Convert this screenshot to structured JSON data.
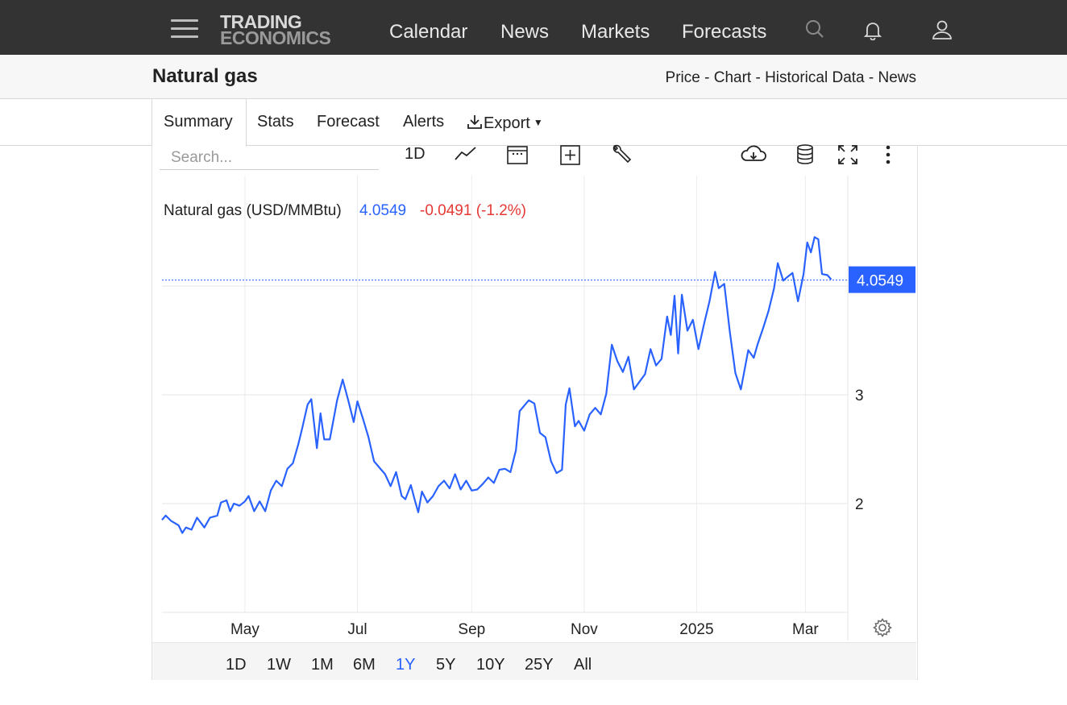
{
  "header": {
    "logo_line1": "TRADING",
    "logo_line2": "ECONOMICS",
    "nav": [
      "Calendar",
      "News",
      "Markets",
      "Forecasts"
    ],
    "icons": [
      "menu-icon",
      "search-icon",
      "bell-icon",
      "user-icon"
    ]
  },
  "subheader": {
    "title": "Natural gas",
    "links": "Price - Chart - Historical Data - News"
  },
  "tabs": [
    "Summary",
    "Stats",
    "Forecast",
    "Alerts",
    "Export"
  ],
  "toolbar": {
    "search_placeholder": "Search...",
    "interval": "1D",
    "icons": [
      "line-chart-icon",
      "calendar-icon",
      "add-compare-icon",
      "wrench-icon",
      "download-cloud-icon",
      "database-icon",
      "fullscreen-icon",
      "more-icon"
    ]
  },
  "legend": {
    "name": "Natural gas (USD/MMBtu)",
    "value": "4.0549",
    "change": "-0.0491 (-1.2%)"
  },
  "ranges": [
    "1D",
    "1W",
    "1M",
    "6M",
    "1Y",
    "5Y",
    "10Y",
    "25Y",
    "All"
  ],
  "active_range": "1Y",
  "colors": {
    "line": "#2962ff",
    "negative": "#e53935",
    "accent": "#2962ff"
  },
  "chart_data": {
    "type": "line",
    "title": "Natural gas (USD/MMBtu)",
    "xlabel": "",
    "ylabel": "",
    "last_value": 4.0549,
    "ylim": [
      1,
      4.8
    ],
    "yticks": [
      2,
      3
    ],
    "xtick_labels": [
      {
        "label": "May",
        "date": "2024-05-01"
      },
      {
        "label": "Jul",
        "date": "2024-07-01"
      },
      {
        "label": "Sep",
        "date": "2024-09-01"
      },
      {
        "label": "Nov",
        "date": "2024-11-01"
      },
      {
        "label": "2025",
        "date": "2025-01-01"
      },
      {
        "label": "Mar",
        "date": "2025-03-01"
      }
    ],
    "x_range": [
      "2024-03-17",
      "2025-03-24"
    ],
    "grid": true,
    "series": [
      {
        "name": "Natural gas",
        "points": [
          [
            "2024-03-17",
            1.85
          ],
          [
            "2024-03-19",
            1.89
          ],
          [
            "2024-03-22",
            1.84
          ],
          [
            "2024-03-26",
            1.8
          ],
          [
            "2024-03-28",
            1.73
          ],
          [
            "2024-03-30",
            1.78
          ],
          [
            "2024-04-02",
            1.76
          ],
          [
            "2024-04-05",
            1.87
          ],
          [
            "2024-04-09",
            1.78
          ],
          [
            "2024-04-12",
            1.87
          ],
          [
            "2024-04-16",
            1.89
          ],
          [
            "2024-04-18",
            2.01
          ],
          [
            "2024-04-21",
            2.03
          ],
          [
            "2024-04-23",
            1.93
          ],
          [
            "2024-04-25",
            2.0
          ],
          [
            "2024-04-28",
            1.98
          ],
          [
            "2024-05-01",
            2.02
          ],
          [
            "2024-05-03",
            2.07
          ],
          [
            "2024-05-06",
            1.93
          ],
          [
            "2024-05-09",
            2.02
          ],
          [
            "2024-05-12",
            1.93
          ],
          [
            "2024-05-15",
            2.12
          ],
          [
            "2024-05-18",
            2.21
          ],
          [
            "2024-05-21",
            2.16
          ],
          [
            "2024-05-24",
            2.32
          ],
          [
            "2024-05-27",
            2.37
          ],
          [
            "2024-05-30",
            2.55
          ],
          [
            "2024-06-01",
            2.69
          ],
          [
            "2024-06-04",
            2.91
          ],
          [
            "2024-06-06",
            2.96
          ],
          [
            "2024-06-09",
            2.51
          ],
          [
            "2024-06-11",
            2.83
          ],
          [
            "2024-06-13",
            2.59
          ],
          [
            "2024-06-16",
            2.59
          ],
          [
            "2024-06-18",
            2.77
          ],
          [
            "2024-06-20",
            2.95
          ],
          [
            "2024-06-23",
            3.14
          ],
          [
            "2024-06-26",
            2.95
          ],
          [
            "2024-06-29",
            2.75
          ],
          [
            "2024-07-01",
            2.94
          ],
          [
            "2024-07-04",
            2.78
          ],
          [
            "2024-07-07",
            2.61
          ],
          [
            "2024-07-10",
            2.39
          ],
          [
            "2024-07-13",
            2.33
          ],
          [
            "2024-07-16",
            2.27
          ],
          [
            "2024-07-19",
            2.16
          ],
          [
            "2024-07-22",
            2.29
          ],
          [
            "2024-07-25",
            2.07
          ],
          [
            "2024-07-27",
            2.04
          ],
          [
            "2024-07-30",
            2.17
          ],
          [
            "2024-08-01",
            2.04
          ],
          [
            "2024-08-03",
            1.92
          ],
          [
            "2024-08-05",
            2.11
          ],
          [
            "2024-08-08",
            2.01
          ],
          [
            "2024-08-11",
            2.07
          ],
          [
            "2024-08-14",
            2.16
          ],
          [
            "2024-08-17",
            2.21
          ],
          [
            "2024-08-20",
            2.14
          ],
          [
            "2024-08-23",
            2.27
          ],
          [
            "2024-08-26",
            2.13
          ],
          [
            "2024-08-29",
            2.21
          ],
          [
            "2024-09-01",
            2.12
          ],
          [
            "2024-09-04",
            2.13
          ],
          [
            "2024-09-07",
            2.18
          ],
          [
            "2024-09-10",
            2.24
          ],
          [
            "2024-09-13",
            2.19
          ],
          [
            "2024-09-16",
            2.31
          ],
          [
            "2024-09-19",
            2.32
          ],
          [
            "2024-09-22",
            2.29
          ],
          [
            "2024-09-25",
            2.49
          ],
          [
            "2024-09-27",
            2.85
          ],
          [
            "2024-09-30",
            2.91
          ],
          [
            "2024-10-02",
            2.95
          ],
          [
            "2024-10-05",
            2.92
          ],
          [
            "2024-10-08",
            2.65
          ],
          [
            "2024-10-11",
            2.61
          ],
          [
            "2024-10-14",
            2.39
          ],
          [
            "2024-10-17",
            2.28
          ],
          [
            "2024-10-20",
            2.31
          ],
          [
            "2024-10-22",
            2.91
          ],
          [
            "2024-10-24",
            3.06
          ],
          [
            "2024-10-27",
            2.71
          ],
          [
            "2024-10-29",
            2.76
          ],
          [
            "2024-11-01",
            2.67
          ],
          [
            "2024-11-04",
            2.82
          ],
          [
            "2024-11-07",
            2.88
          ],
          [
            "2024-11-10",
            2.82
          ],
          [
            "2024-11-13",
            3.01
          ],
          [
            "2024-11-16",
            3.46
          ],
          [
            "2024-11-19",
            3.31
          ],
          [
            "2024-11-22",
            3.21
          ],
          [
            "2024-11-25",
            3.35
          ],
          [
            "2024-11-28",
            3.05
          ],
          [
            "2024-12-01",
            3.12
          ],
          [
            "2024-12-04",
            3.19
          ],
          [
            "2024-12-07",
            3.42
          ],
          [
            "2024-12-10",
            3.27
          ],
          [
            "2024-12-13",
            3.33
          ],
          [
            "2024-12-16",
            3.72
          ],
          [
            "2024-12-18",
            3.55
          ],
          [
            "2024-12-20",
            3.91
          ],
          [
            "2024-12-22",
            3.38
          ],
          [
            "2024-12-24",
            3.92
          ],
          [
            "2024-12-27",
            3.59
          ],
          [
            "2024-12-30",
            3.69
          ],
          [
            "2025-01-02",
            3.42
          ],
          [
            "2025-01-05",
            3.65
          ],
          [
            "2025-01-08",
            3.86
          ],
          [
            "2025-01-11",
            4.13
          ],
          [
            "2025-01-13",
            3.98
          ],
          [
            "2025-01-16",
            4.02
          ],
          [
            "2025-01-19",
            3.58
          ],
          [
            "2025-01-22",
            3.2
          ],
          [
            "2025-01-25",
            3.05
          ],
          [
            "2025-01-27",
            3.23
          ],
          [
            "2025-01-29",
            3.41
          ],
          [
            "2025-02-01",
            3.34
          ],
          [
            "2025-02-03",
            3.46
          ],
          [
            "2025-02-06",
            3.61
          ],
          [
            "2025-02-09",
            3.77
          ],
          [
            "2025-02-12",
            3.98
          ],
          [
            "2025-02-14",
            4.21
          ],
          [
            "2025-02-17",
            4.05
          ],
          [
            "2025-02-19",
            4.08
          ],
          [
            "2025-02-22",
            4.12
          ],
          [
            "2025-02-25",
            3.86
          ],
          [
            "2025-02-28",
            4.11
          ],
          [
            "2025-03-02",
            4.4
          ],
          [
            "2025-03-04",
            4.31
          ],
          [
            "2025-03-06",
            4.45
          ],
          [
            "2025-03-08",
            4.43
          ],
          [
            "2025-03-10",
            4.11
          ],
          [
            "2025-03-13",
            4.1
          ],
          [
            "2025-03-15",
            4.06
          ]
        ]
      }
    ]
  }
}
